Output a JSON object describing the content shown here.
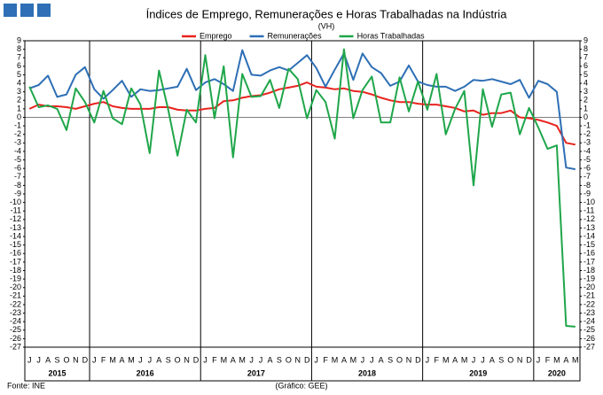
{
  "chart_data": {
    "type": "line",
    "title": "Índices de Emprego, Remunerações e Horas Trabalhadas na Indústria",
    "subtitle": "(VH)",
    "source": "Fonte: INE",
    "credit": "(Gráfico: GEE)",
    "categories": [
      "J",
      "J",
      "A",
      "S",
      "O",
      "N",
      "D",
      "J",
      "F",
      "M",
      "A",
      "M",
      "J",
      "J",
      "A",
      "S",
      "O",
      "N",
      "D",
      "J",
      "F",
      "M",
      "A",
      "M",
      "J",
      "J",
      "A",
      "S",
      "O",
      "N",
      "D",
      "J",
      "F",
      "M",
      "A",
      "M",
      "J",
      "J",
      "A",
      "S",
      "O",
      "N",
      "D",
      "J",
      "F",
      "M",
      "A",
      "M",
      "J",
      "J",
      "A",
      "S",
      "O",
      "N",
      "D",
      "J",
      "F",
      "M",
      "A",
      "M"
    ],
    "year_labels": [
      "2015",
      "2016",
      "2017",
      "2018",
      "2019",
      "2020"
    ],
    "series": [
      {
        "name": "Emprego",
        "color": "#e8231e",
        "values": [
          1.0,
          1.5,
          1.3,
          1.3,
          1.2,
          1.0,
          1.3,
          1.6,
          1.8,
          1.3,
          1.1,
          1.0,
          1.0,
          1.0,
          1.2,
          1.2,
          0.9,
          0.8,
          0.8,
          1.0,
          1.1,
          1.9,
          2.0,
          2.3,
          2.5,
          2.6,
          2.9,
          3.3,
          3.5,
          3.7,
          4.1,
          3.6,
          3.5,
          3.3,
          3.4,
          3.1,
          3.0,
          2.7,
          2.3,
          2.0,
          1.8,
          1.8,
          1.6,
          1.5,
          1.5,
          1.3,
          1.1,
          0.7,
          0.8,
          0.3,
          0.5,
          0.5,
          0.8,
          0.0,
          -0.1,
          -0.3,
          -0.6,
          -1.0,
          -3.0,
          -3.2
        ]
      },
      {
        "name": "Remunerações",
        "color": "#2e6fb5",
        "values": [
          3.4,
          3.8,
          4.9,
          2.4,
          2.7,
          5.0,
          5.9,
          3.3,
          2.2,
          3.2,
          4.3,
          2.4,
          3.3,
          3.1,
          3.2,
          3.4,
          3.6,
          5.7,
          3.2,
          4.1,
          4.5,
          3.9,
          3.1,
          7.9,
          5.0,
          4.9,
          5.5,
          5.9,
          5.5,
          6.4,
          7.3,
          5.8,
          3.6,
          5.6,
          7.5,
          4.4,
          7.5,
          5.9,
          5.2,
          3.7,
          4.2,
          6.1,
          4.2,
          3.8,
          3.6,
          3.6,
          3.1,
          3.6,
          4.4,
          4.3,
          4.5,
          4.2,
          3.9,
          4.4,
          2.3,
          4.3,
          3.9,
          3.0,
          -5.9,
          -6.1
        ]
      },
      {
        "name": "Horas Trabalhadas",
        "color": "#1fa64a",
        "values": [
          3.6,
          1.2,
          1.4,
          1.0,
          -1.5,
          3.4,
          1.8,
          -0.6,
          3.1,
          -0.1,
          -0.8,
          3.4,
          1.5,
          -4.2,
          5.5,
          0.9,
          -4.5,
          0.9,
          -0.6,
          7.3,
          -0.1,
          6.0,
          -4.7,
          5.1,
          2.4,
          2.5,
          4.4,
          1.1,
          5.7,
          4.5,
          -0.1,
          3.2,
          1.8,
          -2.5,
          8.0,
          -0.1,
          3.2,
          4.8,
          -0.6,
          -0.6,
          4.7,
          0.7,
          4.2,
          0.9,
          5.1,
          -2.0,
          1.0,
          3.1,
          -8.0,
          3.3,
          -1.1,
          2.7,
          2.9,
          -2.0,
          1.1,
          -1.2,
          -3.7,
          -3.3,
          -24.5,
          -24.6
        ]
      }
    ],
    "ylim": [
      -27,
      9
    ],
    "yticks": [
      -27,
      -26,
      -25,
      -24,
      -23,
      -22,
      -21,
      -20,
      -19,
      -18,
      -17,
      -16,
      -15,
      -14,
      -13,
      -12,
      -11,
      -10,
      -9,
      -8,
      -7,
      -6,
      -5,
      -4,
      -3,
      -2,
      -1,
      0,
      1,
      2,
      3,
      4,
      5,
      6,
      7,
      8,
      9
    ],
    "legend": "top"
  }
}
